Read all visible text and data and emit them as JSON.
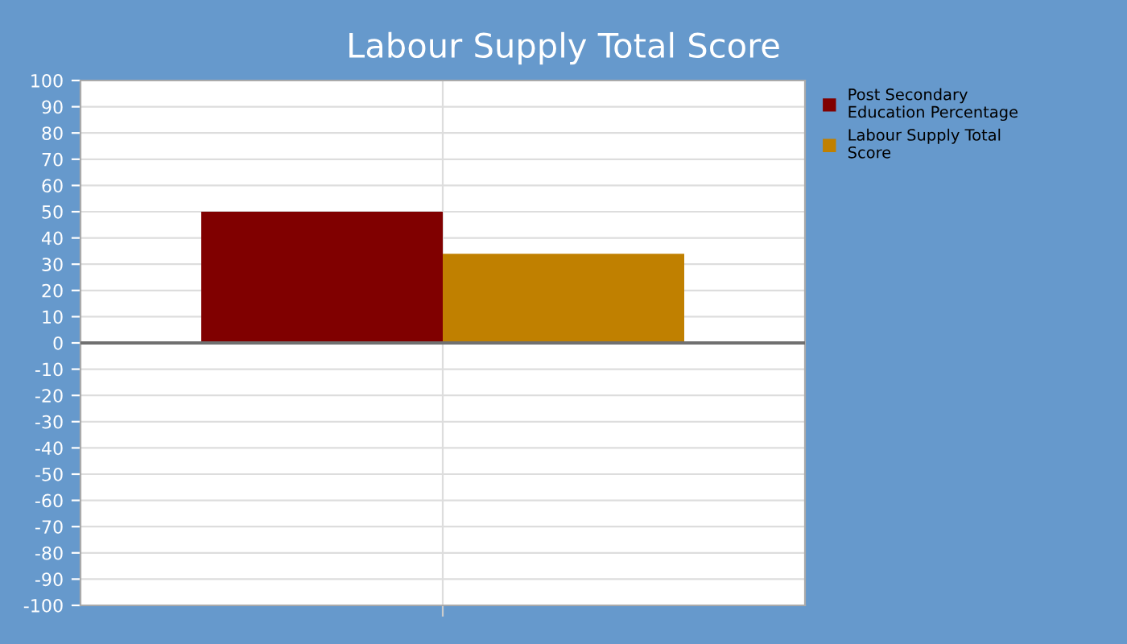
{
  "chart_data": {
    "type": "bar",
    "title": "Labour Supply Total Score",
    "categories": [
      null
    ],
    "series": [
      {
        "name": "Post Secondary Education Percentage",
        "color": "#800000",
        "values": [
          50
        ]
      },
      {
        "name": "Labour Supply Total Score",
        "color": "#c08000",
        "values": [
          34
        ]
      }
    ],
    "ylim": [
      -100,
      100
    ],
    "yticks": [
      -100,
      -90,
      -80,
      -70,
      -60,
      -50,
      -40,
      -30,
      -20,
      -10,
      0,
      10,
      20,
      30,
      40,
      50,
      60,
      70,
      80,
      90,
      100
    ],
    "ref_lines": [
      {
        "axis": "y",
        "value": 0,
        "color": "#707070"
      }
    ],
    "grid": true,
    "legend": "right"
  }
}
